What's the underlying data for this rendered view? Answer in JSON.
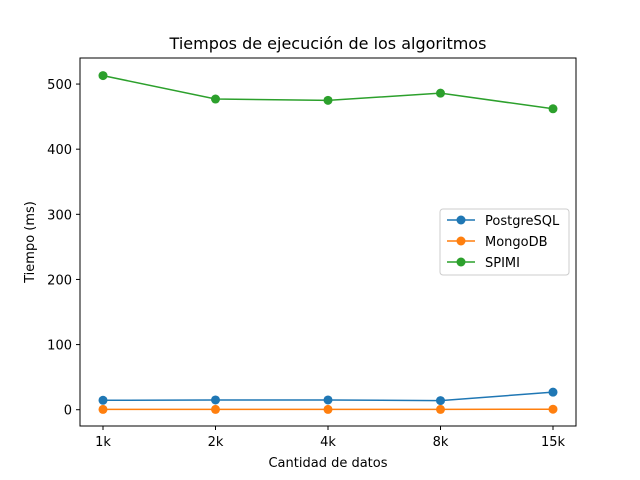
{
  "chart_data": {
    "type": "line",
    "title": "Tiempos de ejecución de los algoritmos",
    "xlabel": "Cantidad de datos",
    "ylabel": "Tiempo (ms)",
    "categories": [
      "1k",
      "2k",
      "4k",
      "8k",
      "15k"
    ],
    "ylim": [
      -25,
      540
    ],
    "yticks": [
      0,
      100,
      200,
      300,
      400,
      500
    ],
    "grid": false,
    "legend_position": "center-right",
    "series": [
      {
        "name": "PostgreSQL",
        "color": "#1f77b4",
        "values": [
          14.5,
          15,
          15,
          14,
          27
        ]
      },
      {
        "name": "MongoDB",
        "color": "#ff7f0e",
        "values": [
          0.5,
          0.5,
          0.5,
          0.5,
          0.8
        ]
      },
      {
        "name": "SPIMI",
        "color": "#2ca02c",
        "values": [
          513,
          477,
          475,
          486,
          462
        ]
      }
    ]
  }
}
